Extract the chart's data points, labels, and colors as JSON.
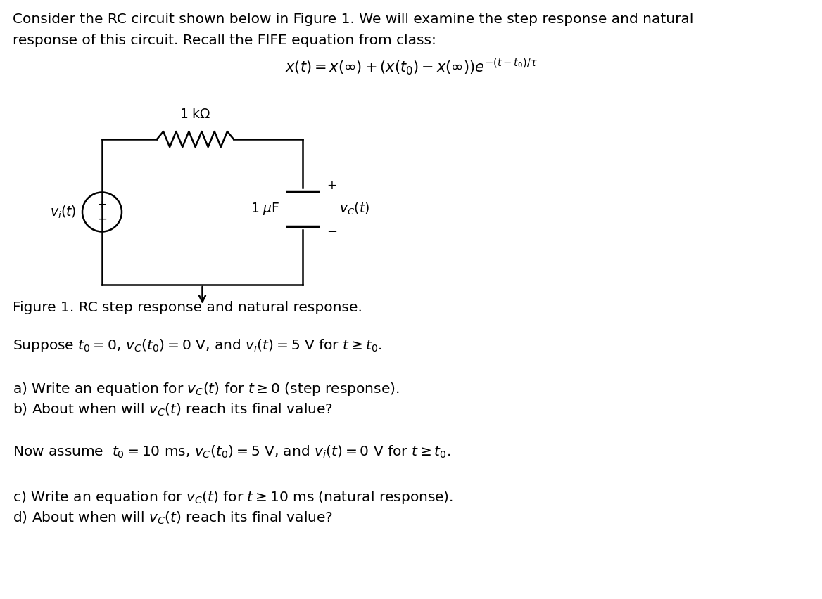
{
  "bg_color": "#ffffff",
  "text_color": "#000000",
  "line1": "Consider the RC circuit shown below in Figure 1. We will examine the step response and natural",
  "line2": "response of this circuit. Recall the FIFE equation from class:",
  "fife_eq": "$x(t) = x(\\infty) + (x(t_0) - x(\\infty))e^{-(t-t_0)/\\tau}$",
  "figure_caption": "Figure 1. RC step response and natural response.",
  "suppose_line": "Suppose $t_0 = 0$, $v_C(t_0) = 0$ V, and $v_i(t) = 5$ V for $t \\geq t_0$.",
  "ab_line1": "a) Write an equation for $v_C(t)$ for $t \\geq 0$ (step response).",
  "ab_line2": "b) About when will $v_C(t)$ reach its final value?",
  "now_assume": "Now assume  $t_0 = 10$ ms, $v_C(t_0) = 5$ V, and $v_i(t) = 0$ V for $t \\geq t_0$.",
  "cd_line1": "c) Write an equation for $v_C(t)$ for $t \\geq 10$ ms (natural response).",
  "cd_line2": "d) About when will $v_C(t)$ reach its final value?",
  "resistor_label": "1 k$\\Omega$",
  "capacitor_label": "1 $\\mu$F",
  "vc_label": "$v_C(t)$",
  "vi_label": "$v_i(t)$",
  "fs_body": 14.5,
  "fs_math_eq": 15,
  "fs_circuit": 13.5,
  "lw_circuit": 1.8
}
